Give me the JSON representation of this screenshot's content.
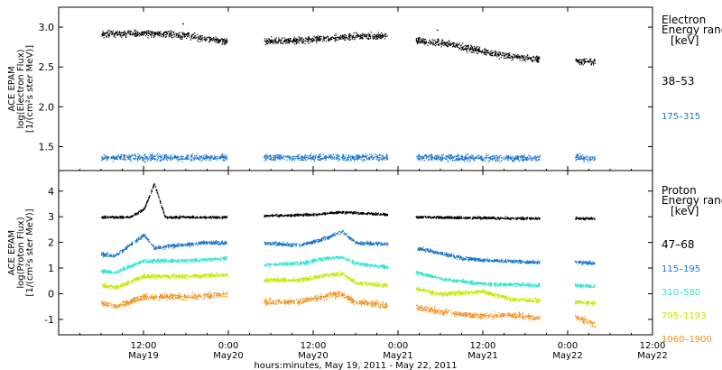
{
  "chart_data": [
    {
      "type": "scatter",
      "ylabel_lines": [
        "ACE EPAM",
        "log(Electron Flux)",
        "[1/(cm²s ster MeV)]"
      ],
      "yticks": [
        1.5,
        2.0,
        2.5,
        3.0
      ],
      "ytick_labels": [
        "1.5",
        "2.0",
        "2.5",
        "3.0"
      ],
      "ylim": [
        1.2,
        3.25
      ],
      "legend_title": [
        "Electron",
        "Energy range",
        "[keV]"
      ],
      "series": [
        {
          "name": "38–53",
          "color": "#000000",
          "segments": [
            {
              "t0": 6.0,
              "t1": 23.8,
              "points": [
                [
                  6,
                  2.92
                ],
                [
                  12,
                  2.93
                ],
                [
                  18,
                  2.9
                ],
                [
                  23.8,
                  2.82
                ]
              ]
            },
            {
              "t0": 29.0,
              "t1": 46.5,
              "points": [
                [
                  29,
                  2.83
                ],
                [
                  34,
                  2.84
                ],
                [
                  40,
                  2.88
                ],
                [
                  46.5,
                  2.9
                ]
              ]
            },
            {
              "t0": 50.5,
              "t1": 68.0,
              "points": [
                [
                  50.5,
                  2.84
                ],
                [
                  56,
                  2.78
                ],
                [
                  62,
                  2.66
                ],
                [
                  68,
                  2.6
                ]
              ]
            },
            {
              "t0": 73.0,
              "t1": 75.8,
              "points": [
                [
                  73,
                  2.58
                ],
                [
                  75.8,
                  2.57
                ]
              ]
            }
          ],
          "features": [
            {
              "t": 17.5,
              "v": 3.05
            },
            {
              "t": 53.5,
              "v": 2.97
            }
          ],
          "noise": 0.035
        },
        {
          "name": "175–315",
          "color": "#1874cd",
          "segments": [
            {
              "t0": 6.0,
              "t1": 23.8,
              "points": [
                [
                  6,
                  1.37
                ],
                [
                  23.8,
                  1.37
                ]
              ]
            },
            {
              "t0": 29.0,
              "t1": 46.5,
              "points": [
                [
                  29,
                  1.37
                ],
                [
                  46.5,
                  1.37
                ]
              ]
            },
            {
              "t0": 50.5,
              "t1": 68.0,
              "points": [
                [
                  50.5,
                  1.37
                ],
                [
                  68,
                  1.36
                ]
              ]
            },
            {
              "t0": 73.0,
              "t1": 75.8,
              "points": [
                [
                  73,
                  1.37
                ],
                [
                  75.8,
                  1.36
                ]
              ]
            }
          ],
          "features": [],
          "noise": 0.035
        }
      ]
    },
    {
      "type": "scatter",
      "ylabel_lines": [
        "ACE EPAM",
        "log(Proton Flux)",
        "[1/(cm²s ster MeV)]"
      ],
      "yticks": [
        -1,
        0,
        1,
        2,
        3,
        4
      ],
      "ytick_labels": [
        "-1",
        "0",
        "1",
        "2",
        "3",
        "4"
      ],
      "ylim": [
        -1.6,
        4.8
      ],
      "legend_title": [
        "Proton",
        "Energy range",
        "[keV]"
      ],
      "series": [
        {
          "name": "47–68",
          "color": "#000000",
          "segments": [
            {
              "t0": 6.0,
              "t1": 23.8,
              "points": [
                [
                  6,
                  3.0
                ],
                [
                  10,
                  3.0
                ],
                [
                  12,
                  3.3
                ],
                [
                  13.5,
                  4.3
                ],
                [
                  15,
                  3.0
                ],
                [
                  23.8,
                  3.0
                ]
              ]
            },
            {
              "t0": 29.0,
              "t1": 46.5,
              "points": [
                [
                  29,
                  3.05
                ],
                [
                  36,
                  3.1
                ],
                [
                  40,
                  3.2
                ],
                [
                  46.5,
                  3.1
                ]
              ]
            },
            {
              "t0": 50.5,
              "t1": 68.0,
              "points": [
                [
                  50.5,
                  3.0
                ],
                [
                  68,
                  2.95
                ]
              ]
            },
            {
              "t0": 73.0,
              "t1": 75.8,
              "points": [
                [
                  73,
                  2.95
                ],
                [
                  75.8,
                  2.95
                ]
              ]
            }
          ],
          "features": [],
          "noise": 0.04
        },
        {
          "name": "115–195",
          "color": "#1874cd",
          "segments": [
            {
              "t0": 6.0,
              "t1": 23.8,
              "points": [
                [
                  6,
                  1.55
                ],
                [
                  8,
                  1.5
                ],
                [
                  10,
                  1.9
                ],
                [
                  12,
                  2.3
                ],
                [
                  13.5,
                  1.8
                ],
                [
                  15,
                  1.85
                ],
                [
                  20,
                  2.0
                ],
                [
                  23.8,
                  2.0
                ]
              ]
            },
            {
              "t0": 29.0,
              "t1": 46.5,
              "points": [
                [
                  29,
                  2.0
                ],
                [
                  34,
                  1.9
                ],
                [
                  38,
                  2.2
                ],
                [
                  40,
                  2.45
                ],
                [
                  42,
                  2.0
                ],
                [
                  46.5,
                  1.95
                ]
              ]
            },
            {
              "t0": 50.5,
              "t1": 68.0,
              "points": [
                [
                  50.5,
                  1.8
                ],
                [
                  54,
                  1.6
                ],
                [
                  57,
                  1.4
                ],
                [
                  62,
                  1.3
                ],
                [
                  68,
                  1.25
                ]
              ]
            },
            {
              "t0": 73.0,
              "t1": 75.8,
              "points": [
                [
                  73,
                  1.25
                ],
                [
                  75.8,
                  1.2
                ]
              ]
            }
          ],
          "features": [],
          "noise": 0.06
        },
        {
          "name": "310–580",
          "color": "#2ee5d0",
          "segments": [
            {
              "t0": 6.0,
              "t1": 23.8,
              "points": [
                [
                  6,
                  0.9
                ],
                [
                  8,
                  0.85
                ],
                [
                  12,
                  1.3
                ],
                [
                  18,
                  1.3
                ],
                [
                  23.8,
                  1.4
                ]
              ]
            },
            {
              "t0": 29.0,
              "t1": 46.5,
              "points": [
                [
                  29,
                  1.15
                ],
                [
                  34,
                  1.2
                ],
                [
                  38,
                  1.4
                ],
                [
                  40,
                  1.45
                ],
                [
                  42,
                  1.2
                ],
                [
                  46.5,
                  1.05
                ]
              ]
            },
            {
              "t0": 50.5,
              "t1": 68.0,
              "points": [
                [
                  50.5,
                  0.85
                ],
                [
                  54,
                  0.6
                ],
                [
                  60,
                  0.4
                ],
                [
                  68,
                  0.35
                ]
              ]
            },
            {
              "t0": 73.0,
              "t1": 75.8,
              "points": [
                [
                  73,
                  0.35
                ],
                [
                  75.8,
                  0.3
                ]
              ]
            }
          ],
          "features": [],
          "noise": 0.06
        },
        {
          "name": "795–1193",
          "color": "#c8e600",
          "segments": [
            {
              "t0": 6.0,
              "t1": 23.8,
              "points": [
                [
                  6,
                  0.35
                ],
                [
                  8,
                  0.25
                ],
                [
                  12,
                  0.7
                ],
                [
                  18,
                  0.7
                ],
                [
                  23.8,
                  0.75
                ]
              ]
            },
            {
              "t0": 29.0,
              "t1": 46.5,
              "points": [
                [
                  29,
                  0.55
                ],
                [
                  34,
                  0.55
                ],
                [
                  38,
                  0.75
                ],
                [
                  40,
                  0.8
                ],
                [
                  42,
                  0.45
                ],
                [
                  46.5,
                  0.35
                ]
              ]
            },
            {
              "t0": 50.5,
              "t1": 68.0,
              "points": [
                [
                  50.5,
                  0.2
                ],
                [
                  54,
                  0.0
                ],
                [
                  60,
                  0.1
                ],
                [
                  64,
                  -0.2
                ],
                [
                  68,
                  -0.25
                ]
              ]
            },
            {
              "t0": 73.0,
              "t1": 75.8,
              "points": [
                [
                  73,
                  -0.3
                ],
                [
                  75.8,
                  -0.35
                ]
              ]
            }
          ],
          "features": [],
          "noise": 0.07
        },
        {
          "name": "1060–1900",
          "color": "#f0901a",
          "segments": [
            {
              "t0": 6.0,
              "t1": 23.8,
              "points": [
                [
                  6,
                  -0.35
                ],
                [
                  8,
                  -0.5
                ],
                [
                  12,
                  -0.1
                ],
                [
                  18,
                  -0.1
                ],
                [
                  23.8,
                  0.0
                ]
              ]
            },
            {
              "t0": 29.0,
              "t1": 46.5,
              "points": [
                [
                  29,
                  -0.3
                ],
                [
                  34,
                  -0.3
                ],
                [
                  38,
                  -0.05
                ],
                [
                  40,
                  0.0
                ],
                [
                  42,
                  -0.3
                ],
                [
                  46.5,
                  -0.45
                ]
              ]
            },
            {
              "t0": 50.5,
              "t1": 68.0,
              "points": [
                [
                  50.5,
                  -0.5
                ],
                [
                  54,
                  -0.7
                ],
                [
                  60,
                  -0.85
                ],
                [
                  64,
                  -0.8
                ],
                [
                  68,
                  -0.95
                ]
              ]
            },
            {
              "t0": 73.0,
              "t1": 75.8,
              "points": [
                [
                  73,
                  -0.85
                ],
                [
                  75.8,
                  -1.2
                ]
              ]
            }
          ],
          "features": [],
          "noise": 0.1
        }
      ]
    }
  ],
  "x_axis": {
    "xlim": [
      0,
      84
    ],
    "xticks": [
      {
        "t": 12,
        "time": "12:00",
        "date": "May19"
      },
      {
        "t": 24,
        "time": "0:00",
        "date": "May20"
      },
      {
        "t": 36,
        "time": "12:00",
        "date": "May20"
      },
      {
        "t": 48,
        "time": "0:00",
        "date": "May21"
      },
      {
        "t": 60,
        "time": "12:00",
        "date": "May21"
      },
      {
        "t": 72,
        "time": "0:00",
        "date": "May22"
      },
      {
        "t": 84,
        "time": "12:00",
        "date": "May22"
      }
    ],
    "xlabel": "hours:minutes, May 19, 2011 - May 22, 2011"
  }
}
